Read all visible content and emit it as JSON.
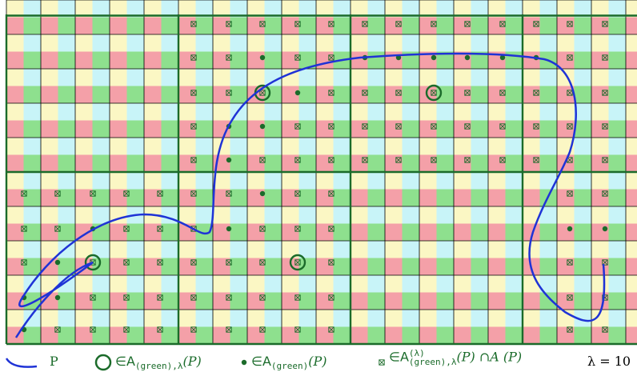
{
  "colors": {
    "cyan": "#c8f4f8",
    "yellow": "#fbf7c4",
    "green": "#8ee08e",
    "pink": "#f4a0a8",
    "dark_green": "#1b6b2a",
    "curve": "#1f33d6",
    "grid": "#000000"
  },
  "legend": {
    "curve_label": "P",
    "circle_label": "∈A",
    "circle_sub": "(green),λ",
    "circle_arg": "(P)",
    "dot_label": "∈A",
    "dot_sub": "(green)",
    "dot_arg": "(P)",
    "box_label": "∈A",
    "box_sup": "(λ)",
    "box_sub": "(green),λ",
    "box_arg": "(P) ∩A (P)",
    "lambda_label": "λ = 10"
  },
  "icons": {
    "curve": "curve-swatch-icon",
    "circle": "circle-marker-icon",
    "dot": "dot-marker-icon",
    "box": "boxed-cross-marker-icon"
  }
}
